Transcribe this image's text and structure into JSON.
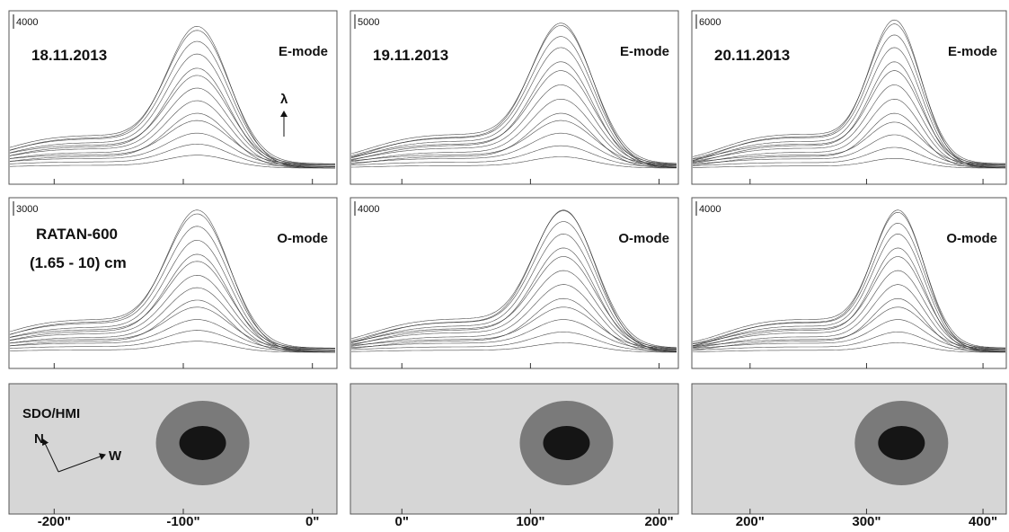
{
  "columns": [
    {
      "date": "18.11.2013",
      "xlim": [
        -235,
        19
      ],
      "xticks": [
        {
          "value": -200,
          "label": "-200\""
        },
        {
          "value": -100,
          "label": "-100\""
        },
        {
          "value": 0,
          "label": "0\""
        }
      ],
      "e_mode": {
        "label": "E-mode",
        "scale": 4000,
        "peak_x": -88,
        "width": 24,
        "peaks": [
          0.08,
          0.14,
          0.2,
          0.27,
          0.34,
          0.41,
          0.48,
          0.55,
          0.62,
          0.7,
          0.77,
          0.83,
          0.88
        ]
      },
      "o_mode": {
        "label": "O-mode",
        "scale": 3000,
        "peak_x": -88,
        "width": 24,
        "peaks": [
          0.07,
          0.13,
          0.19,
          0.26,
          0.33,
          0.4,
          0.47,
          0.55,
          0.62,
          0.7,
          0.78,
          0.85,
          0.9
        ]
      },
      "hmi": {
        "spot_x": -85
      }
    },
    {
      "date": "19.11.2013",
      "xlim": [
        -40,
        215
      ],
      "xticks": [
        {
          "value": 0,
          "label": "0\""
        },
        {
          "value": 100,
          "label": "100\""
        },
        {
          "value": 200,
          "label": "200\""
        }
      ],
      "e_mode": {
        "label": "E-mode",
        "scale": 5000,
        "peak_x": 125,
        "width": 24,
        "peaks": [
          0.07,
          0.13,
          0.2,
          0.27,
          0.34,
          0.42,
          0.5,
          0.58,
          0.66,
          0.74,
          0.8,
          0.86,
          0.9
        ]
      },
      "o_mode": {
        "label": "O-mode",
        "scale": 4000,
        "peak_x": 127,
        "width": 24,
        "peaks": [
          0.06,
          0.12,
          0.19,
          0.26,
          0.34,
          0.42,
          0.5,
          0.58,
          0.66,
          0.74,
          0.81,
          0.87,
          0.9
        ]
      },
      "hmi": {
        "spot_x": 128
      }
    },
    {
      "date": "20.11.2013",
      "xlim": [
        150,
        420
      ],
      "xticks": [
        {
          "value": 200,
          "label": "200\""
        },
        {
          "value": 300,
          "label": "300\""
        },
        {
          "value": 400,
          "label": "400\""
        }
      ],
      "e_mode": {
        "label": "E-mode",
        "scale": 6000,
        "peak_x": 325,
        "width": 22,
        "peaks": [
          0.06,
          0.12,
          0.19,
          0.26,
          0.34,
          0.42,
          0.5,
          0.58,
          0.66,
          0.74,
          0.81,
          0.87,
          0.92
        ]
      },
      "o_mode": {
        "label": "O-mode",
        "scale": 4000,
        "peak_x": 328,
        "width": 22,
        "peaks": [
          0.06,
          0.12,
          0.19,
          0.26,
          0.34,
          0.42,
          0.5,
          0.58,
          0.66,
          0.74,
          0.8,
          0.86,
          0.9
        ]
      },
      "hmi": {
        "spot_x": 330
      }
    }
  ],
  "annotations": {
    "instrument": "RATAN-600",
    "band": "(1.65 - 10) cm",
    "hmi": "SDO/HMI",
    "north": "N",
    "west": "W",
    "lambda": "λ"
  }
}
